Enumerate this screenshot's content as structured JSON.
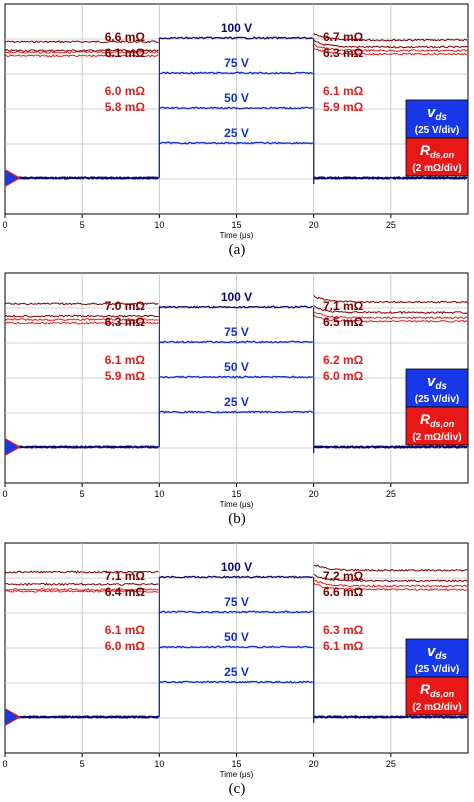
{
  "chart_data": [
    {
      "type": "line",
      "caption": "(a)",
      "xlabel": "Time (μs)",
      "x_ticks": [
        0,
        5,
        10,
        15,
        20,
        25
      ],
      "xlim": [
        0,
        30
      ],
      "vds_series": [
        {
          "label": "100 V",
          "segments": [
            [
              0,
              10,
              0
            ],
            [
              10,
              20,
              100
            ],
            [
              20,
              30,
              0
            ]
          ]
        },
        {
          "label": "75 V",
          "segments": [
            [
              0,
              10,
              0
            ],
            [
              10,
              20,
              75
            ],
            [
              20,
              30,
              0
            ]
          ]
        },
        {
          "label": "50 V",
          "segments": [
            [
              0,
              10,
              0
            ],
            [
              10,
              20,
              50
            ],
            [
              20,
              30,
              0
            ]
          ]
        },
        {
          "label": "25 V",
          "segments": [
            [
              0,
              10,
              0
            ],
            [
              10,
              20,
              25
            ],
            [
              20,
              30,
              0
            ]
          ]
        }
      ],
      "rds_before": [
        "6.6 mΩ",
        "6.1 mΩ",
        "6.0 mΩ",
        "5.8 mΩ"
      ],
      "rds_after": [
        "6.7 mΩ",
        "6.3 mΩ",
        "6.1 mΩ",
        "5.9 mΩ"
      ],
      "rds_values_before": [
        6.6,
        6.1,
        6.0,
        5.8
      ],
      "rds_values_after": [
        6.7,
        6.3,
        6.1,
        5.9
      ],
      "legend": {
        "vds_name": "v",
        "vds_sub": "ds",
        "vds_scale": "(25 V/div)",
        "rds_name": "R",
        "rds_sub": "ds,on",
        "rds_scale": "(2 mΩ/div)"
      }
    },
    {
      "type": "line",
      "caption": "(b)",
      "xlabel": "Time (μs)",
      "x_ticks": [
        0,
        5,
        10,
        15,
        20,
        25
      ],
      "xlim": [
        0,
        30
      ],
      "vds_series": [
        {
          "label": "100 V",
          "segments": [
            [
              0,
              10,
              0
            ],
            [
              10,
              20,
              100
            ],
            [
              20,
              30,
              0
            ]
          ]
        },
        {
          "label": "75 V",
          "segments": [
            [
              0,
              10,
              0
            ],
            [
              10,
              20,
              75
            ],
            [
              20,
              30,
              0
            ]
          ]
        },
        {
          "label": "50 V",
          "segments": [
            [
              0,
              10,
              0
            ],
            [
              10,
              20,
              50
            ],
            [
              20,
              30,
              0
            ]
          ]
        },
        {
          "label": "25 V",
          "segments": [
            [
              0,
              10,
              0
            ],
            [
              10,
              20,
              25
            ],
            [
              20,
              30,
              0
            ]
          ]
        }
      ],
      "rds_before": [
        "7.0 mΩ",
        "6.3 mΩ",
        "6.1 mΩ",
        "5.9 mΩ"
      ],
      "rds_after": [
        "7.1 mΩ",
        "6.5 mΩ",
        "6.2 mΩ",
        "6.0 mΩ"
      ],
      "rds_values_before": [
        7.0,
        6.3,
        6.1,
        5.9
      ],
      "rds_values_after": [
        7.1,
        6.5,
        6.2,
        6.0
      ],
      "legend": {
        "vds_name": "v",
        "vds_sub": "ds",
        "vds_scale": "(25 V/div)",
        "rds_name": "R",
        "rds_sub": "ds,on",
        "rds_scale": "(2 mΩ/div)"
      }
    },
    {
      "type": "line",
      "caption": "(c)",
      "xlabel": "Time (μs)",
      "x_ticks": [
        0,
        5,
        10,
        15,
        20,
        25
      ],
      "xlim": [
        0,
        30
      ],
      "vds_series": [
        {
          "label": "100 V",
          "segments": [
            [
              0,
              10,
              0
            ],
            [
              10,
              20,
              100
            ],
            [
              20,
              30,
              0
            ]
          ]
        },
        {
          "label": "75 V",
          "segments": [
            [
              0,
              10,
              0
            ],
            [
              10,
              20,
              75
            ],
            [
              20,
              30,
              0
            ]
          ]
        },
        {
          "label": "50 V",
          "segments": [
            [
              0,
              10,
              0
            ],
            [
              10,
              20,
              50
            ],
            [
              20,
              30,
              0
            ]
          ]
        },
        {
          "label": "25 V",
          "segments": [
            [
              0,
              10,
              0
            ],
            [
              10,
              20,
              25
            ],
            [
              20,
              30,
              0
            ]
          ]
        }
      ],
      "rds_before": [
        "7.1 mΩ",
        "6.4 mΩ",
        "6.1 mΩ",
        "6.0 mΩ"
      ],
      "rds_after": [
        "7.2 mΩ",
        "6.6 mΩ",
        "6.3 mΩ",
        "6.1 mΩ"
      ],
      "rds_values_before": [
        7.1,
        6.4,
        6.1,
        6.0
      ],
      "rds_values_after": [
        7.2,
        6.6,
        6.3,
        6.1
      ],
      "legend": {
        "vds_name": "v",
        "vds_sub": "ds",
        "vds_scale": "(25 V/div)",
        "rds_name": "R",
        "rds_sub": "ds,on",
        "rds_scale": "(2 mΩ/div)"
      }
    }
  ],
  "colors": {
    "vds": "#1030c8",
    "vds_100": "#0a0a6e",
    "rds_dark": "#7a0000",
    "rds_light": "#e02020",
    "grid": "#c0c0c0",
    "legend_blue": "#1838e8",
    "legend_red": "#e81818"
  }
}
